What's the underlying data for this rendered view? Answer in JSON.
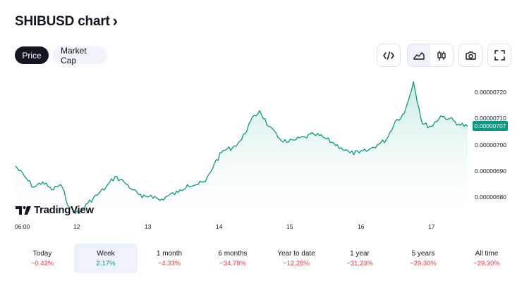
{
  "header": {
    "title": "SHIBUSD chart",
    "chevron": "›"
  },
  "toggles": {
    "price": "Price",
    "market_cap": "Market Cap"
  },
  "tools": [
    "embed-icon",
    "area-chart-icon",
    "candles-icon",
    "camera-icon",
    "fullscreen-icon"
  ],
  "chart": {
    "current_price": "0.00000707",
    "y_ticks": [
      "0.00000720",
      "0.00000710",
      "0.00000700",
      "0.00000690",
      "0.00000680"
    ],
    "x_ticks": [
      "06:00",
      "12",
      "13",
      "14",
      "15",
      "16",
      "17"
    ],
    "branding": "TradingView",
    "colors": {
      "line": "#089981",
      "fill_top": "#bfe7df",
      "fill_bottom": "#ffffff"
    }
  },
  "periods": [
    {
      "label": "Today",
      "change": "−0.42%",
      "dir": "neg"
    },
    {
      "label": "Week",
      "change": "2.17%",
      "dir": "pos"
    },
    {
      "label": "1 month",
      "change": "−4.33%",
      "dir": "neg"
    },
    {
      "label": "6 months",
      "change": "−34.78%",
      "dir": "neg"
    },
    {
      "label": "Year to date",
      "change": "−12.28%",
      "dir": "neg"
    },
    {
      "label": "1 year",
      "change": "−31.23%",
      "dir": "neg"
    },
    {
      "label": "5 years",
      "change": "−29.30%",
      "dir": "neg"
    },
    {
      "label": "All time",
      "change": "−29.30%",
      "dir": "neg"
    }
  ],
  "chart_data": {
    "type": "area",
    "x_ticks": [
      "06:00",
      "12",
      "13",
      "14",
      "15",
      "16",
      "17"
    ],
    "ylim": [
      6.7e-06,
      7.3e-06
    ],
    "y_ticks": [
      6.8e-06,
      6.9e-06,
      7e-06,
      7.1e-06,
      7.2e-06
    ],
    "series": [
      {
        "values": [
          6.92e-06,
          6.88e-06,
          6.84e-06,
          6.86e-06,
          6.83e-06,
          6.85e-06,
          6.76e-06,
          6.74e-06,
          6.78e-06,
          6.81e-06,
          6.84e-06,
          6.88e-06,
          6.86e-06,
          6.83e-06,
          6.8e-06,
          6.81e-06,
          6.79e-06,
          6.81e-06,
          6.82e-06,
          6.85e-06,
          6.85e-06,
          6.86e-06,
          6.93e-06,
          6.98e-06,
          6.99e-06,
          7.02e-06,
          7.09e-06,
          7.13e-06,
          7.07e-06,
          7.03e-06,
          7.01e-06,
          7.02e-06,
          7.03e-06,
          7.04e-06,
          7.03e-06,
          7.01e-06,
          6.99e-06,
          6.97e-06,
          6.97e-06,
          6.98e-06,
          7e-06,
          7.02e-06,
          7.09e-06,
          7.12e-06,
          7.24e-06,
          7.08e-06,
          7.07e-06,
          7.11e-06,
          7.1e-06,
          7.08e-06,
          7.07e-06
        ]
      }
    ]
  }
}
